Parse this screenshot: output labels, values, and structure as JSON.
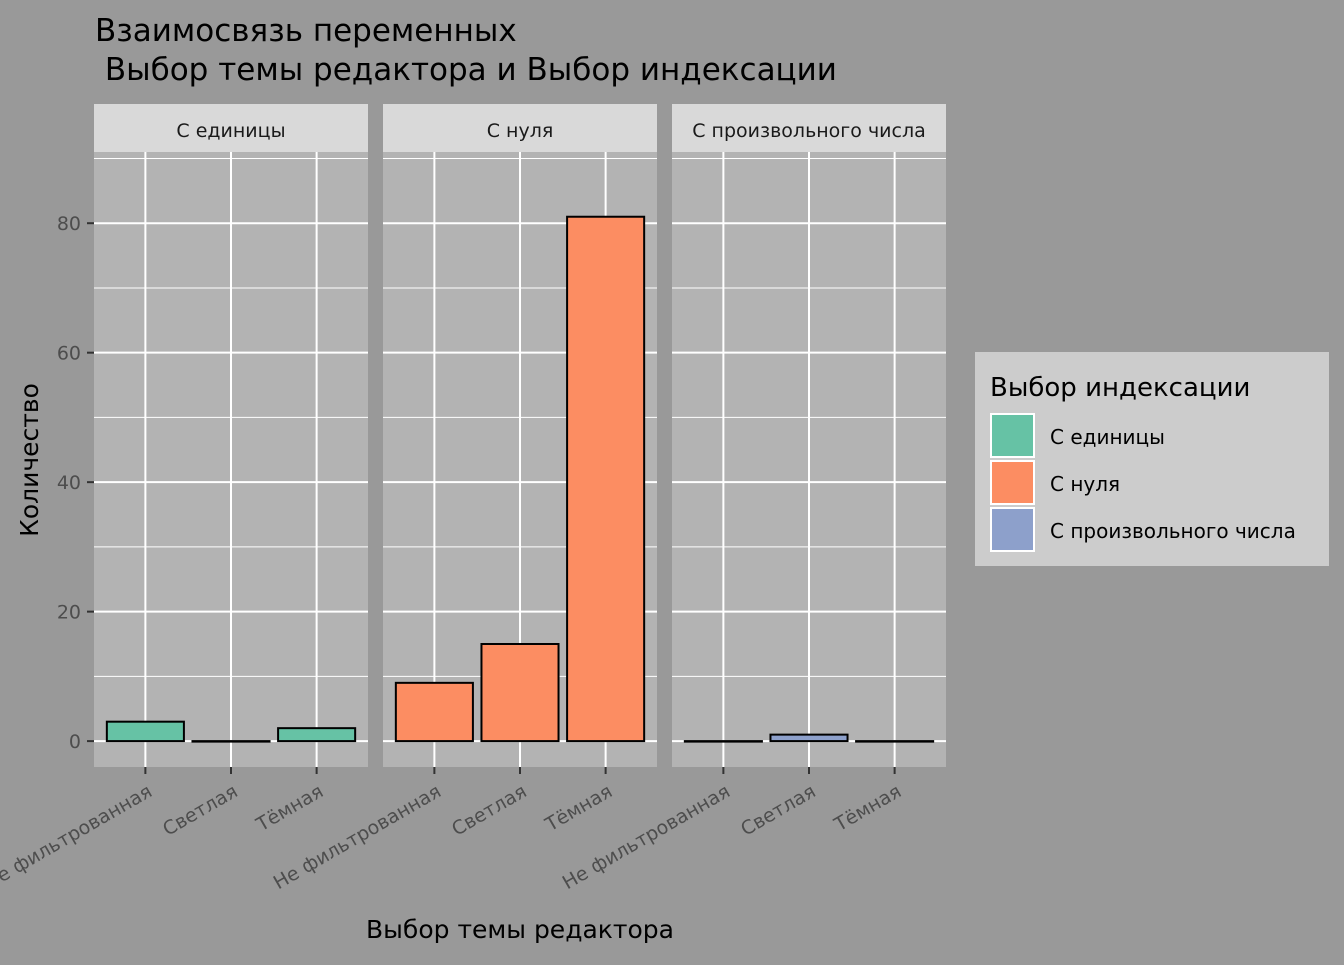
{
  "chart_data": {
    "type": "bar",
    "title_line1": "Взаимосвязь переменных",
    "title_line2": " Выбор темы редактора и Выбор индексации",
    "xlabel": "Выбор темы редактора",
    "ylabel": "Количество",
    "categories": [
      "Не фильтрованная",
      "Светлая",
      "Тёмная"
    ],
    "ylim": [
      -4,
      91
    ],
    "yticks": [
      0,
      20,
      40,
      60,
      80
    ],
    "grid": true,
    "legend_placement": "right",
    "legend": {
      "title": "Выбор индексации",
      "entries": [
        {
          "label": "С единицы",
          "color": "#66C2A5"
        },
        {
          "label": "С нуля",
          "color": "#FC8D62"
        },
        {
          "label": "С произвольного числа",
          "color": "#8DA0CB"
        }
      ]
    },
    "panels": [
      {
        "label": "С единицы",
        "color": "#66C2A5",
        "values": [
          3,
          0,
          2
        ]
      },
      {
        "label": "С нуля",
        "color": "#FC8D62",
        "values": [
          9,
          15,
          81
        ]
      },
      {
        "label": "С произвольного числа",
        "color": "#8DA0CB",
        "values": [
          0,
          1,
          0
        ]
      }
    ]
  }
}
